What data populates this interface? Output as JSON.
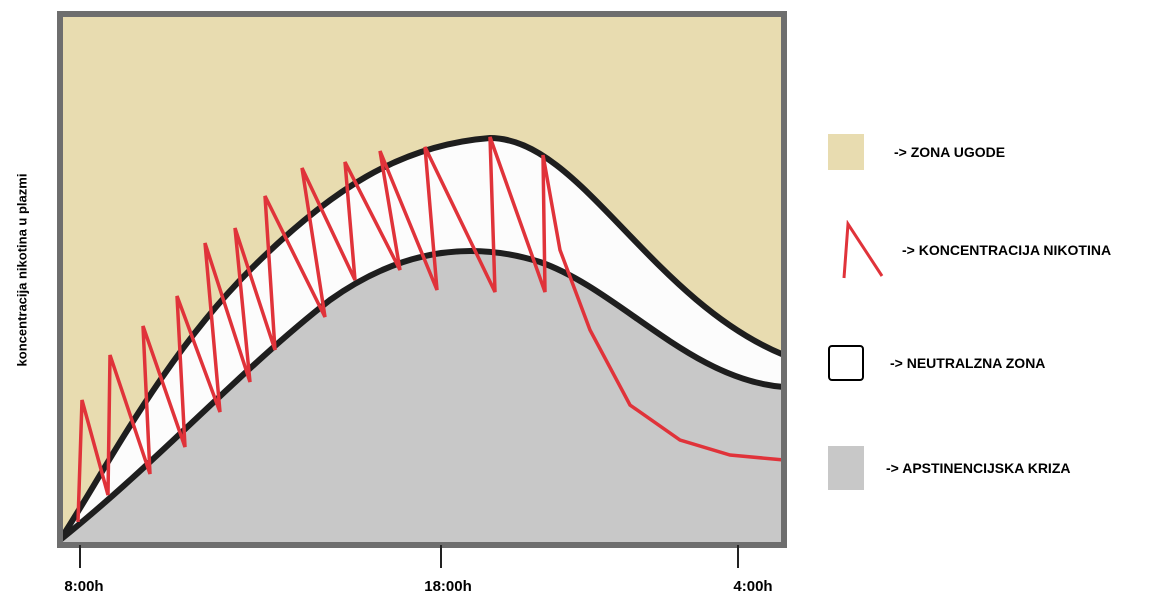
{
  "colors": {
    "comfort_zone": "#e8dcb0",
    "neutral_zone": "#fcfcfc",
    "crisis_zone": "#c8c8c8",
    "nicotine_line": "#e0333a",
    "boundary_line": "#1e1e1e",
    "frame": "#6e6e6e"
  },
  "axis": {
    "y_label": "koncentracija nikotina u plazmi",
    "x_ticks": [
      "8:00h",
      "18:00h",
      "4:00h"
    ]
  },
  "legend": [
    {
      "label": "-> ZONA UGODE",
      "icon": "filled-square"
    },
    {
      "label": "-> KONCENTRACIJA NIKOTINA",
      "icon": "sawtooth-line"
    },
    {
      "label": "-> NEUTRALZNA ZONA",
      "icon": "outlined-square"
    },
    {
      "label": "-> APSTINENCIJSKA KRIZA",
      "icon": "filled-square"
    }
  ]
}
